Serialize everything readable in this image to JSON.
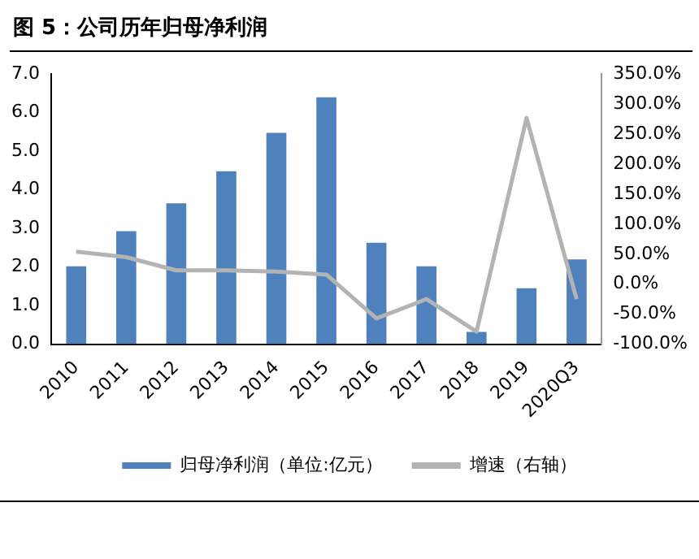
{
  "chart_data": {
    "type": "bar",
    "title": "图 5：公司历年归母净利润",
    "categories": [
      "2010",
      "2011",
      "2012",
      "2013",
      "2014",
      "2015",
      "2016",
      "2017",
      "2018",
      "2019",
      "2020Q3"
    ],
    "series": [
      {
        "name": "归母净利润（单位:亿元）",
        "color": "#4f81bd",
        "values": [
          2.02,
          2.93,
          3.65,
          4.48,
          5.48,
          6.4,
          2.63,
          2.02,
          0.32,
          1.45,
          2.2
        ]
      },
      {
        "name": "增速（右轴）",
        "type": "line",
        "axis": "y2",
        "color": "#b3b3b3",
        "values": [
          54,
          45,
          23,
          23,
          21,
          16,
          -57,
          -25,
          -79,
          277,
          -25
        ]
      }
    ],
    "ylim": [
      0,
      7
    ],
    "yticks": [
      {
        "value": 0,
        "label": "0.0"
      },
      {
        "value": 1,
        "label": "1.0"
      },
      {
        "value": 2,
        "label": "2.0"
      },
      {
        "value": 3,
        "label": "3.0"
      },
      {
        "value": 4,
        "label": "4.0"
      },
      {
        "value": 5,
        "label": "5.0"
      },
      {
        "value": 6,
        "label": "6.0"
      },
      {
        "value": 7,
        "label": "7.0"
      }
    ],
    "y2lim": [
      -100,
      350
    ],
    "y2ticks": [
      {
        "value": -100,
        "label": "-100.0%"
      },
      {
        "value": -50,
        "label": "-50.0%"
      },
      {
        "value": 0,
        "label": "0.0%"
      },
      {
        "value": 50,
        "label": "50.0%"
      },
      {
        "value": 100,
        "label": "100.0%"
      },
      {
        "value": 150,
        "label": "150.0%"
      },
      {
        "value": 200,
        "label": "200.0%"
      },
      {
        "value": 250,
        "label": "250.0%"
      },
      {
        "value": 300,
        "label": "300.0%"
      },
      {
        "value": 350,
        "label": "350.0%"
      }
    ],
    "grid": false,
    "legend": "bottom",
    "marker": "none",
    "line_style": "solid"
  }
}
